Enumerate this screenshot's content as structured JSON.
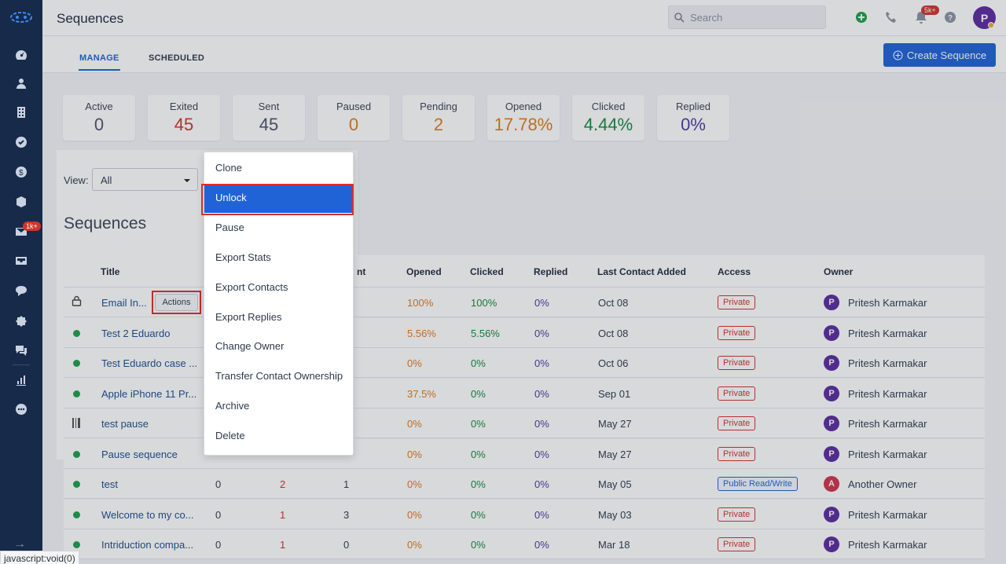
{
  "header": {
    "title": "Sequences",
    "search_placeholder": "Search",
    "notification_badge": "5k+",
    "avatar_initial": "P"
  },
  "sidebar": {
    "mail_badge": "1k+"
  },
  "tabs": [
    {
      "label": "MANAGE",
      "active": true
    },
    {
      "label": "SCHEDULED",
      "active": false
    }
  ],
  "create_button": "Create Sequence",
  "stats": [
    {
      "label": "Active",
      "value": "0",
      "color": "#4a5566"
    },
    {
      "label": "Exited",
      "value": "45",
      "color": "#d0342c"
    },
    {
      "label": "Sent",
      "value": "45",
      "color": "#4a5566"
    },
    {
      "label": "Paused",
      "value": "0",
      "color": "#e07b1f"
    },
    {
      "label": "Pending",
      "value": "2",
      "color": "#e07b1f"
    },
    {
      "label": "Opened",
      "value": "17.78%",
      "color": "#e07b1f"
    },
    {
      "label": "Clicked",
      "value": "4.44%",
      "color": "#148a3f"
    },
    {
      "label": "Replied",
      "value": "0%",
      "color": "#4c3ba3"
    }
  ],
  "view": {
    "label": "View:",
    "value": "All"
  },
  "section_title": "Sequences",
  "table": {
    "headers": {
      "title": "Title",
      "sent": "nt",
      "opened": "Opened",
      "clicked": "Clicked",
      "replied": "Replied",
      "last_contact": "Last Contact Added",
      "access": "Access",
      "owner": "Owner"
    },
    "rows": [
      {
        "status": "locked",
        "title": "Email In...",
        "c1": "",
        "c2": "",
        "c3": "",
        "opened": "100%",
        "clicked": "100%",
        "replied": "0%",
        "last": "Oct 08",
        "access": "Private",
        "owner": "Pritesh Karmakar",
        "owner_initial": "P",
        "actions": "Actions"
      },
      {
        "status": "active",
        "title": "Test 2 Eduardo",
        "c1": "",
        "c2": "",
        "c3": "",
        "opened": "5.56%",
        "clicked": "5.56%",
        "replied": "0%",
        "last": "Oct 08",
        "access": "Private",
        "owner": "Pritesh Karmakar",
        "owner_initial": "P"
      },
      {
        "status": "active",
        "title": "Test Eduardo case ...",
        "c1": "",
        "c2": "",
        "c3": "",
        "opened": "0%",
        "clicked": "0%",
        "replied": "0%",
        "last": "Oct 06",
        "access": "Private",
        "owner": "Pritesh Karmakar",
        "owner_initial": "P"
      },
      {
        "status": "active",
        "title": "Apple iPhone 11 Pr...",
        "c1": "",
        "c2": "",
        "c3": "",
        "opened": "37.5%",
        "clicked": "0%",
        "replied": "0%",
        "last": "Sep 01",
        "access": "Private",
        "owner": "Pritesh Karmakar",
        "owner_initial": "P"
      },
      {
        "status": "paused",
        "title": "test pause",
        "c1": "",
        "c2": "",
        "c3": "",
        "opened": "0%",
        "clicked": "0%",
        "replied": "0%",
        "last": "May 27",
        "access": "Private",
        "owner": "Pritesh Karmakar",
        "owner_initial": "P"
      },
      {
        "status": "active",
        "title": "Pause sequence",
        "c1": "",
        "c2": "",
        "c3": "",
        "opened": "0%",
        "clicked": "0%",
        "replied": "0%",
        "last": "May 27",
        "access": "Private",
        "owner": "Pritesh Karmakar",
        "owner_initial": "P"
      },
      {
        "status": "active",
        "title": "test",
        "c1": "0",
        "c2": "2",
        "c3": "1",
        "opened": "0%",
        "clicked": "0%",
        "replied": "0%",
        "last": "May 05",
        "access": "Public Read/Write",
        "owner": "Another Owner",
        "owner_initial": "A"
      },
      {
        "status": "active",
        "title": "Welcome to my co...",
        "c1": "0",
        "c2": "1",
        "c3": "3",
        "opened": "0%",
        "clicked": "0%",
        "replied": "0%",
        "last": "May 03",
        "access": "Private",
        "owner": "Pritesh Karmakar",
        "owner_initial": "P"
      },
      {
        "status": "active",
        "title": "Intriduction compa...",
        "c1": "0",
        "c2": "1",
        "c3": "0",
        "opened": "0%",
        "clicked": "0%",
        "replied": "0%",
        "last": "Mar 18",
        "access": "Private",
        "owner": "Pritesh Karmakar",
        "owner_initial": "P"
      }
    ]
  },
  "menu": {
    "items": [
      "Clone",
      "Unlock",
      "Pause",
      "Export Stats",
      "Export Contacts",
      "Export Replies",
      "Change Owner",
      "Transfer Contact Ownership",
      "Archive",
      "Delete"
    ],
    "active": "Unlock"
  },
  "status_bar": "javascript:void(0)"
}
